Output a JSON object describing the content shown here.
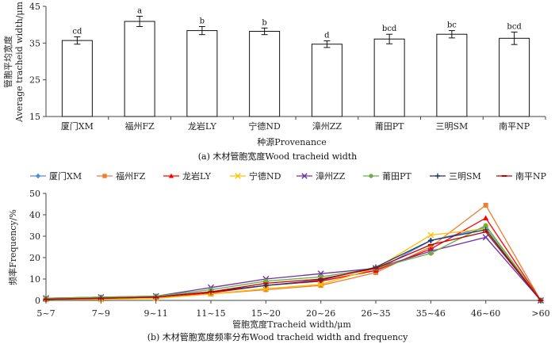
{
  "chart_data": [
    {
      "type": "bar",
      "title": "",
      "caption": "(a) 木材管胞宽度Wood tracheid width",
      "xlabel": "种源Provenance",
      "ylabel_cn": "管胞平均宽度",
      "ylabel_en": "Average tracheid width/μm",
      "ylim": [
        15,
        45
      ],
      "yticks": [
        15,
        25,
        35,
        45
      ],
      "categories": [
        "厦门XM",
        "福州FZ",
        "龙岩LY",
        "宁德ND",
        "漳州ZZ",
        "莆田PT",
        "三明SM",
        "南平NP"
      ],
      "values": [
        35.7,
        40.9,
        38.4,
        38.2,
        34.7,
        36.1,
        37.4,
        36.3
      ],
      "errors": [
        1.0,
        1.4,
        1.1,
        0.9,
        0.9,
        1.3,
        1.0,
        1.7
      ],
      "labels": [
        "cd",
        "a",
        "b",
        "b",
        "d",
        "bcd",
        "bc",
        "bcd"
      ]
    },
    {
      "type": "line",
      "caption": "(b) 木材管胞宽度频率分布Wood tracheid width and frequency",
      "xlabel": "管胞宽度Tracheid width/μm",
      "ylabel": "频率Frequency/%",
      "ylim": [
        0,
        50
      ],
      "yticks": [
        0,
        10,
        20,
        30,
        40,
        50
      ],
      "categories": [
        "5~7",
        "7~9",
        "9~11",
        "11~15",
        "15~20",
        "20~26",
        "26~35",
        "35~46",
        "46~60",
        ">60"
      ],
      "series": [
        {
          "name": "厦门XM",
          "color": "#4a90d9",
          "marker": "diamond",
          "values": [
            1.0,
            1.5,
            2.0,
            4.0,
            7.0,
            9.0,
            14.0,
            28.0,
            34.0,
            0
          ]
        },
        {
          "name": "福州FZ",
          "color": "#ed7d31",
          "marker": "square",
          "values": [
            0.5,
            0.5,
            1.0,
            3.0,
            5.0,
            7.0,
            13.0,
            25.0,
            44.5,
            0
          ]
        },
        {
          "name": "龙岩LY",
          "color": "#ff0000",
          "marker": "triangle",
          "values": [
            0.5,
            1.0,
            1.0,
            3.5,
            7.0,
            9.0,
            14.0,
            24.0,
            38.5,
            0
          ]
        },
        {
          "name": "宁德ND",
          "color": "#ffc000",
          "marker": "x",
          "values": [
            0.5,
            0.5,
            1.0,
            3.0,
            5.5,
            7.5,
            15.0,
            30.5,
            33.5,
            0
          ]
        },
        {
          "name": "漳州ZZ",
          "color": "#7030a0",
          "marker": "x",
          "values": [
            1.0,
            1.5,
            2.0,
            6.0,
            10.0,
            12.5,
            15.0,
            23.0,
            29.5,
            0
          ]
        },
        {
          "name": "莆田PT",
          "color": "#70ad47",
          "marker": "circle",
          "values": [
            1.0,
            1.5,
            2.0,
            5.0,
            9.0,
            11.0,
            15.0,
            22.0,
            35.0,
            0
          ]
        },
        {
          "name": "三明SM",
          "color": "#1f3864",
          "marker": "plus",
          "values": [
            0.5,
            1.0,
            1.5,
            4.0,
            7.0,
            9.5,
            15.5,
            28.0,
            33.0,
            0
          ]
        },
        {
          "name": "南平NP",
          "color": "#c00000",
          "marker": "dash",
          "values": [
            0.5,
            1.0,
            1.5,
            4.0,
            8.0,
            10.0,
            15.0,
            26.0,
            32.0,
            0
          ]
        }
      ]
    }
  ]
}
